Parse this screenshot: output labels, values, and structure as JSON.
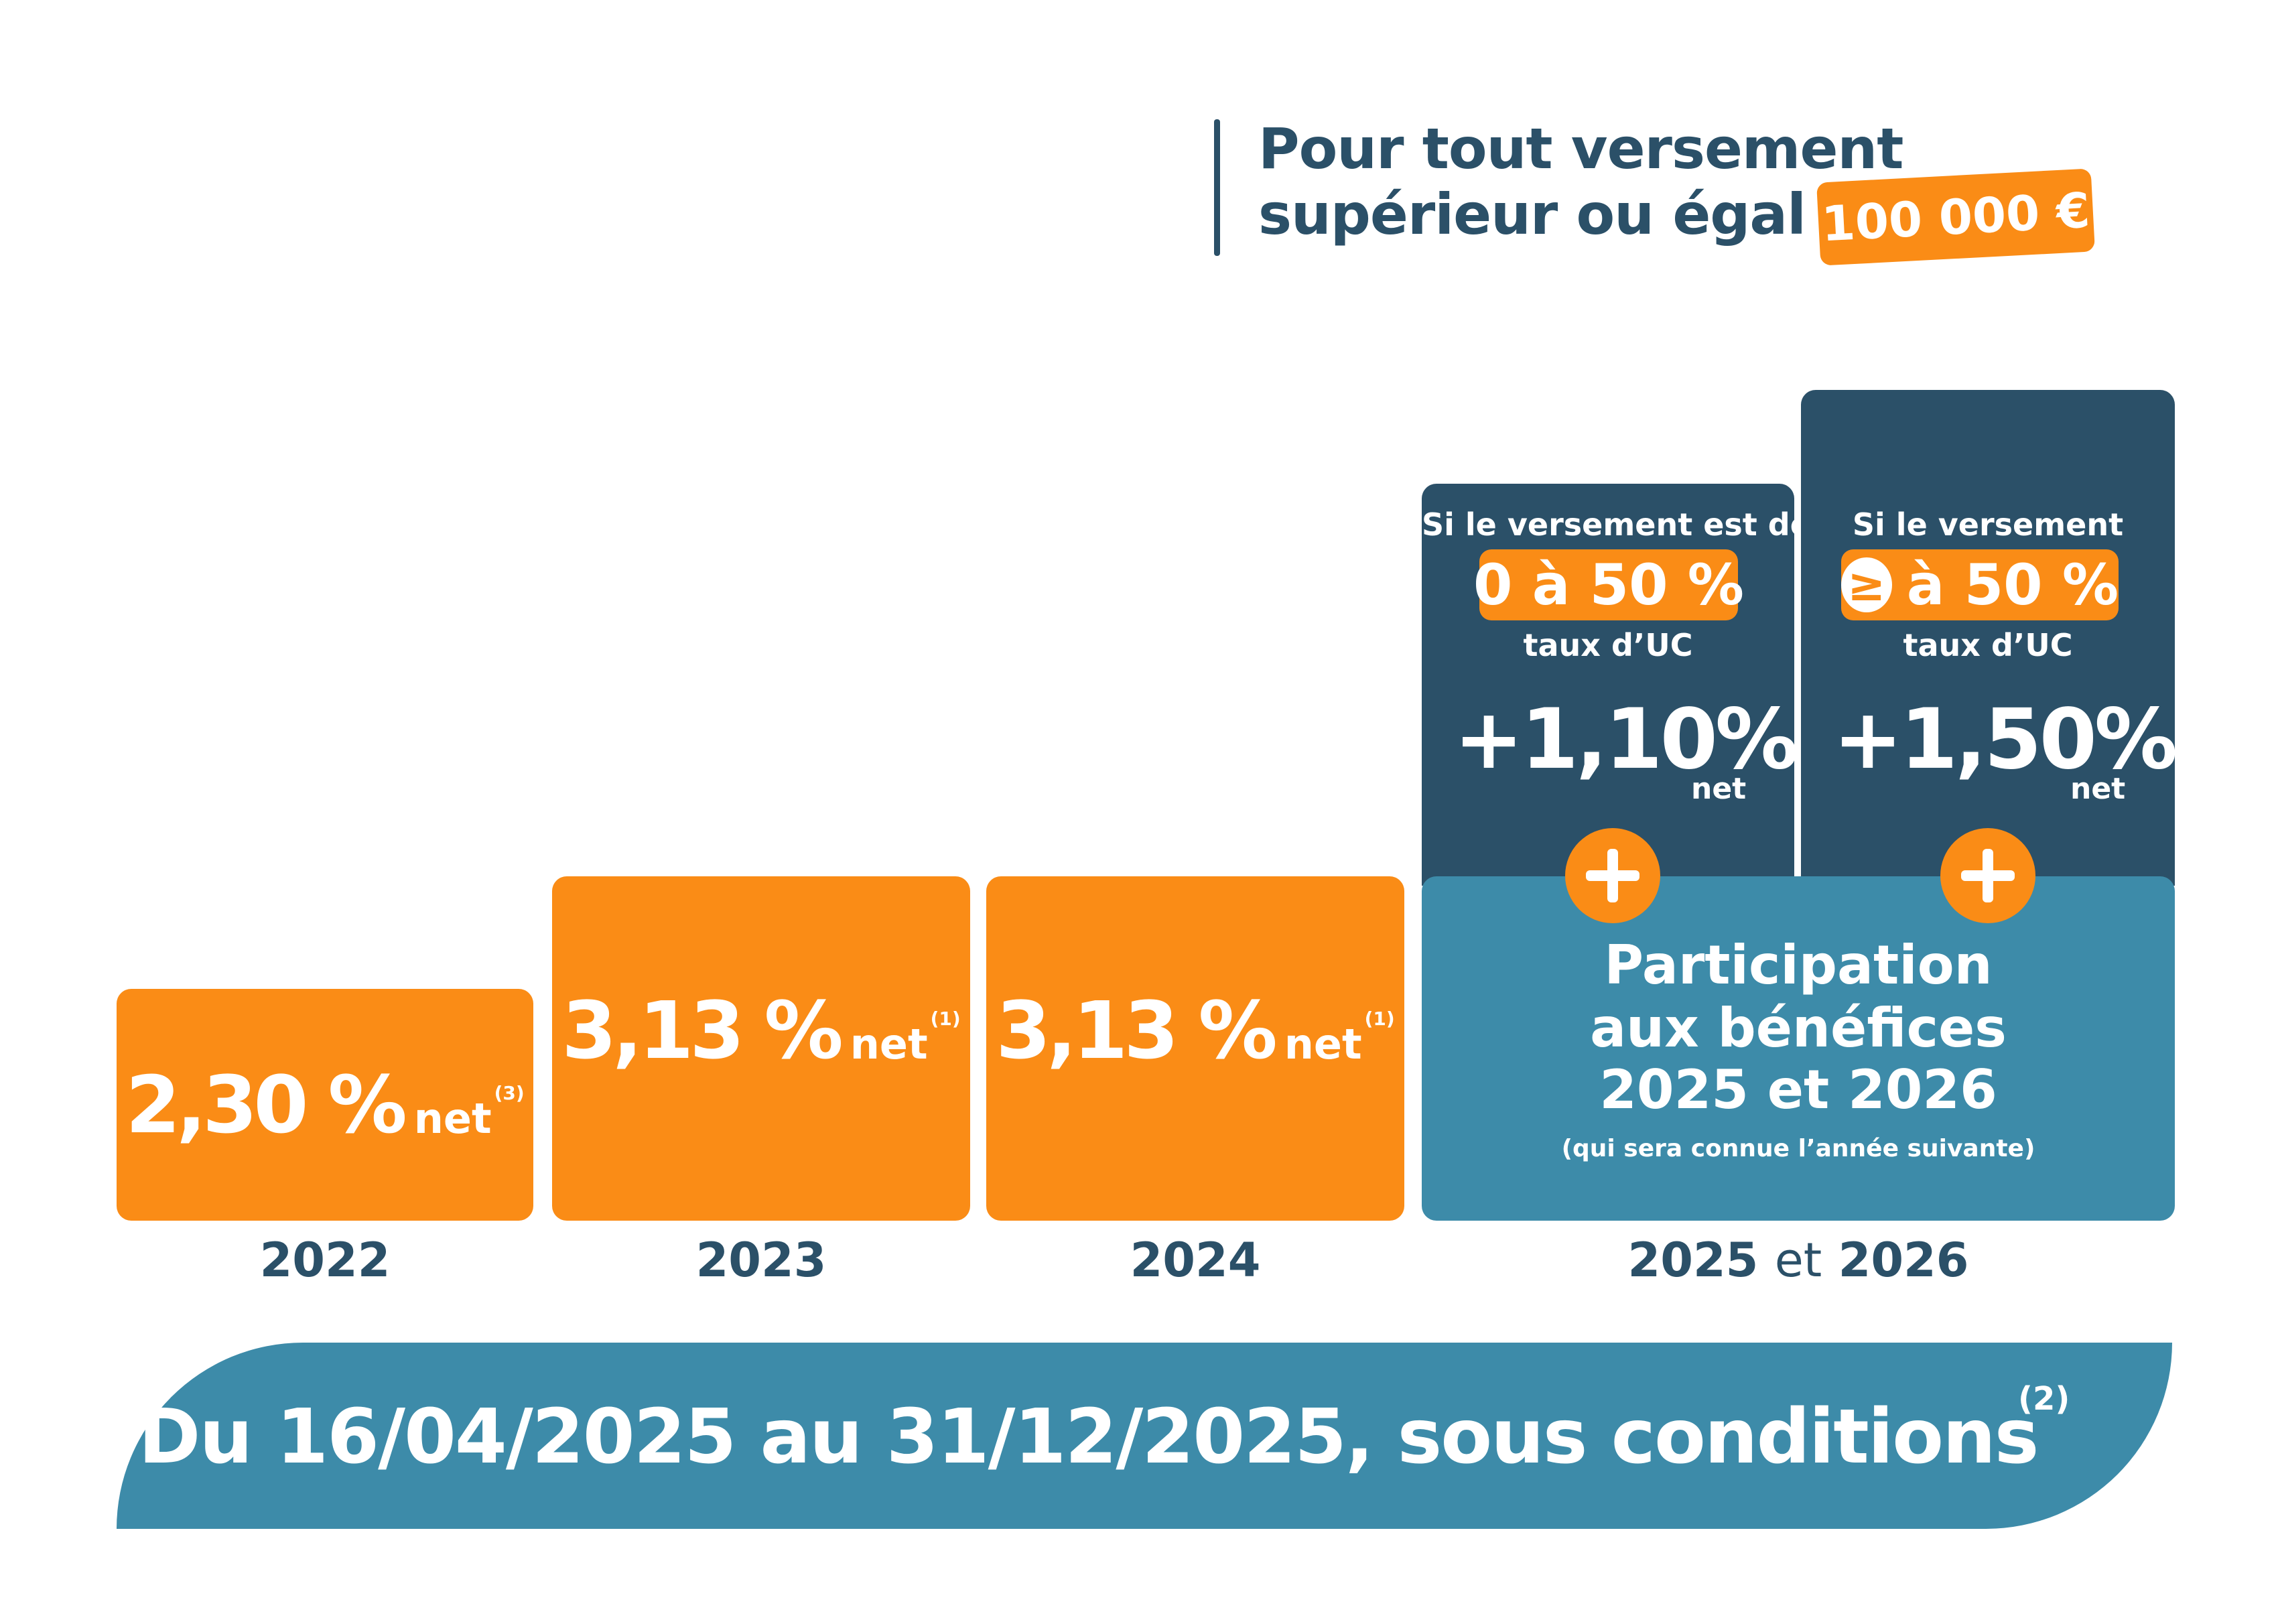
{
  "header": {
    "line1": "Pour tout versement",
    "line2": "supérieur ou égal à",
    "amount": "100 000 €"
  },
  "chart_data": {
    "type": "bar",
    "categories": [
      "2022",
      "2023",
      "2024",
      "2025 et 2026"
    ],
    "series": [
      {
        "values": [
          2.3,
          3.13,
          3.13,
          null
        ]
      }
    ],
    "value_labels": [
      "2,30 %",
      "3,13 %",
      "3,13 %"
    ],
    "unit_suffix": "net",
    "notes": [
      "(3)",
      "(1)",
      "(1)"
    ]
  },
  "bars": [
    {
      "value": "2,30 %",
      "suffix": "net",
      "note": "(3)",
      "year": "2022"
    },
    {
      "value": "3,13 %",
      "suffix": "net",
      "note": "(1)",
      "year": "2023"
    },
    {
      "value": "3,13 %",
      "suffix": "net",
      "note": "(1)",
      "year": "2024"
    }
  ],
  "bonus": [
    {
      "line1": "Si le versement est de",
      "pill": "0 à 50 %",
      "line2": "taux d’UC",
      "pct": "+1,10%",
      "net": "net"
    },
    {
      "line1": "Si le versement",
      "pill_symbol": "≥",
      "pill": "à 50 %",
      "line2": "taux d’UC",
      "pct": "+1,50%",
      "net": "net"
    }
  ],
  "participation": {
    "line1": "Participation",
    "line2": "aux bénéfices",
    "line3": "2025 et 2026",
    "note": "(qui sera connue l’année suivante)"
  },
  "last_year": {
    "y1": "2025",
    "et": "et",
    "y2": "2026"
  },
  "banner": {
    "text": "Du 16/04/2025 au 31/12/2025, sous conditions",
    "note": "(2)"
  },
  "colors": {
    "orange": "#fa8c16",
    "navy": "#2b5068",
    "teal": "#3d8ba9"
  }
}
